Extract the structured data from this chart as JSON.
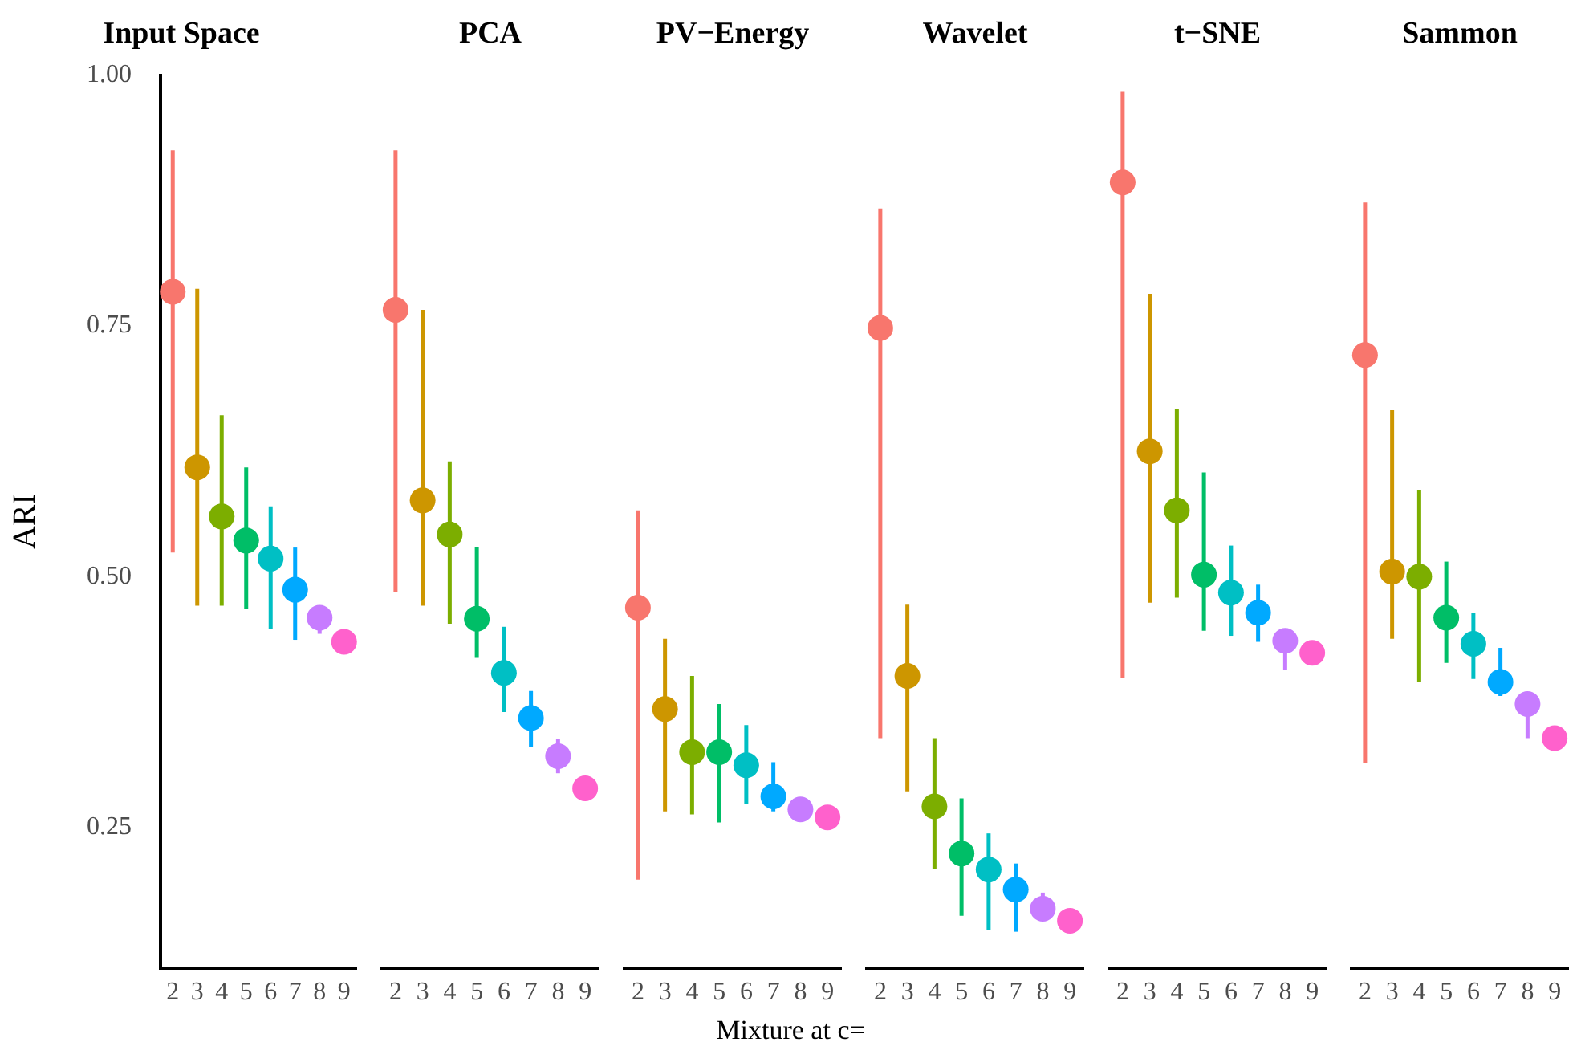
{
  "chart_data": [
    {
      "type": "scatter",
      "title": "Input Space",
      "ylabel": "ARI",
      "categories": [
        "2",
        "3",
        "4",
        "5",
        "6",
        "7",
        "8",
        "9"
      ],
      "values": [
        0.784,
        0.609,
        0.56,
        0.536,
        0.518,
        0.487,
        0.459,
        0.435
      ],
      "errors": [
        [
          0.524,
          0.925
        ],
        [
          0.471,
          0.787
        ],
        [
          0.471,
          0.661
        ],
        [
          0.468,
          0.609
        ],
        [
          0.448,
          0.57
        ],
        [
          0.437,
          0.529
        ],
        [
          0.443,
          0.459
        ],
        null
      ],
      "colors": [
        "#f8766d",
        "#cd9600",
        "#7cae00",
        "#00be67",
        "#00bfc4",
        "#00a9ff",
        "#c77cff",
        "#ff61cc"
      ],
      "ylim": [
        0.11,
        1.0
      ],
      "yticks": [
        {
          "value": 0.25,
          "label": "0.25"
        },
        {
          "value": 0.5,
          "label": "0.50"
        },
        {
          "value": 0.75,
          "label": "0.75"
        },
        {
          "value": 1,
          "label": "1.00"
        }
      ],
      "marker": "circle",
      "grid": false,
      "legend": false
    },
    {
      "type": "scatter",
      "title": "PCA",
      "categories": [
        "2",
        "3",
        "4",
        "5",
        "6",
        "7",
        "8",
        "9"
      ],
      "values": [
        0.766,
        0.576,
        0.542,
        0.458,
        0.404,
        0.359,
        0.321,
        0.289
      ],
      "errors": [
        [
          0.485,
          0.925
        ],
        [
          0.471,
          0.766
        ],
        [
          0.453,
          0.615
        ],
        [
          0.419,
          0.529
        ],
        [
          0.365,
          0.45
        ],
        [
          0.33,
          0.386
        ],
        [
          0.304,
          0.338
        ],
        null
      ],
      "colors": [
        "#f8766d",
        "#cd9600",
        "#7cae00",
        "#00be67",
        "#00bfc4",
        "#00a9ff",
        "#c77cff",
        "#ff61cc"
      ],
      "ylim": [
        0.11,
        1.0
      ],
      "tick_labels": "x",
      "marker": "circle",
      "grid": false,
      "legend": false
    },
    {
      "type": "scatter",
      "title": "PV−Energy",
      "xlabel": "Mixture at c=",
      "categories": [
        "2",
        "3",
        "4",
        "5",
        "6",
        "7",
        "8",
        "9"
      ],
      "values": [
        0.469,
        0.368,
        0.325,
        0.325,
        0.312,
        0.281,
        0.268,
        0.26
      ],
      "errors": [
        [
          0.198,
          0.566
        ],
        [
          0.266,
          0.438
        ],
        [
          0.263,
          0.401
        ],
        [
          0.255,
          0.373
        ],
        [
          0.273,
          0.352
        ],
        [
          0.266,
          0.315
        ],
        null,
        null
      ],
      "colors": [
        "#f8766d",
        "#cd9600",
        "#7cae00",
        "#00be67",
        "#00bfc4",
        "#00a9ff",
        "#c77cff",
        "#ff61cc"
      ],
      "ylim": [
        0.11,
        1.0
      ],
      "tick_labels": "x",
      "marker": "circle",
      "grid": false,
      "legend": false
    },
    {
      "type": "scatter",
      "title": "Wavelet",
      "categories": [
        "2",
        "3",
        "4",
        "5",
        "6",
        "7",
        "8",
        "9"
      ],
      "values": [
        0.748,
        0.401,
        0.271,
        0.224,
        0.208,
        0.188,
        0.169,
        0.157
      ],
      "errors": [
        [
          0.339,
          0.867
        ],
        [
          0.286,
          0.472
        ],
        [
          0.209,
          0.339
        ],
        [
          0.162,
          0.279
        ],
        [
          0.148,
          0.244
        ],
        [
          0.146,
          0.214
        ],
        [
          0.169,
          0.185
        ],
        null
      ],
      "colors": [
        "#f8766d",
        "#cd9600",
        "#7cae00",
        "#00be67",
        "#00bfc4",
        "#00a9ff",
        "#c77cff",
        "#ff61cc"
      ],
      "ylim": [
        0.11,
        1.0
      ],
      "tick_labels": "x",
      "marker": "circle",
      "grid": false,
      "legend": false
    },
    {
      "type": "scatter",
      "title": "t−SNE",
      "categories": [
        "2",
        "3",
        "4",
        "5",
        "6",
        "7",
        "8",
        "9"
      ],
      "values": [
        0.893,
        0.625,
        0.566,
        0.502,
        0.484,
        0.464,
        0.436,
        0.424
      ],
      "errors": [
        [
          0.399,
          0.984
        ],
        [
          0.474,
          0.782
        ],
        [
          0.479,
          0.667
        ],
        [
          0.446,
          0.604
        ],
        [
          0.441,
          0.531
        ],
        [
          0.435,
          0.492
        ],
        [
          0.407,
          0.436
        ],
        null
      ],
      "colors": [
        "#f8766d",
        "#cd9600",
        "#7cae00",
        "#00be67",
        "#00bfc4",
        "#00a9ff",
        "#c77cff",
        "#ff61cc"
      ],
      "ylim": [
        0.11,
        1.0
      ],
      "tick_labels": "x",
      "marker": "circle",
      "grid": false,
      "legend": false
    },
    {
      "type": "scatter",
      "title": "Sammon",
      "categories": [
        "2",
        "3",
        "4",
        "5",
        "6",
        "7",
        "8",
        "9"
      ],
      "values": [
        0.721,
        0.505,
        0.5,
        0.459,
        0.433,
        0.395,
        0.373,
        0.339
      ],
      "errors": [
        [
          0.314,
          0.873
        ],
        [
          0.438,
          0.666
        ],
        [
          0.395,
          0.586
        ],
        [
          0.414,
          0.515
        ],
        [
          0.398,
          0.464
        ],
        [
          0.381,
          0.429
        ],
        [
          0.339,
          0.373
        ],
        null
      ],
      "colors": [
        "#f8766d",
        "#cd9600",
        "#7cae00",
        "#00be67",
        "#00bfc4",
        "#00a9ff",
        "#c77cff",
        "#ff61cc"
      ],
      "ylim": [
        0.11,
        1.0
      ],
      "tick_labels": "x",
      "marker": "circle",
      "grid": false,
      "legend": false
    }
  ]
}
